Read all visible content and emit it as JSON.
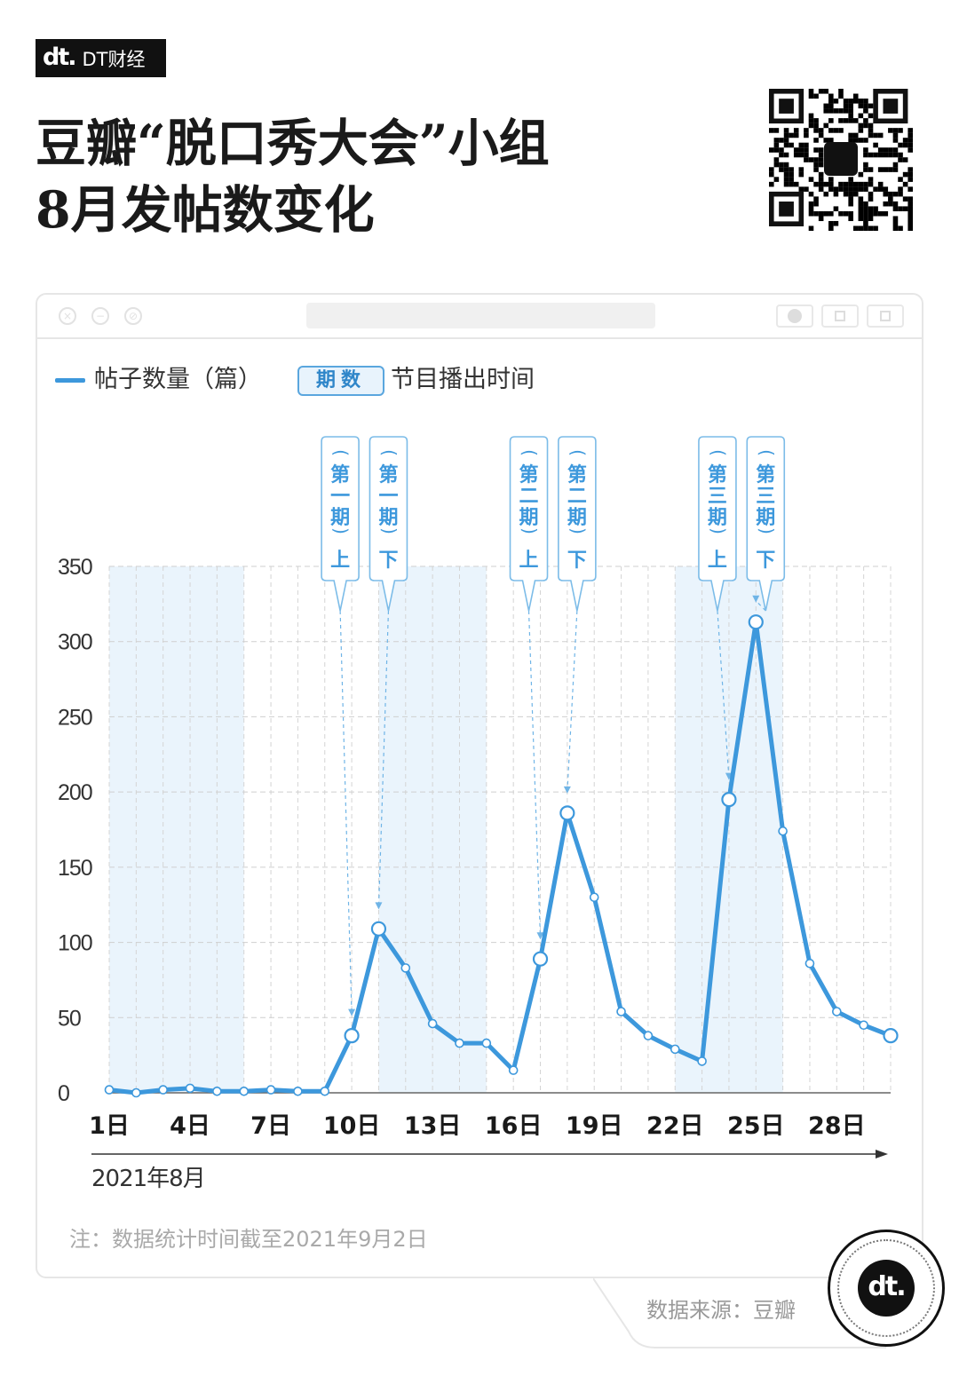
{
  "brand": {
    "mark": "dt.",
    "name": "DT财经"
  },
  "title_lines": [
    "豆瓣“脱口秀大会”小组",
    "8月发帖数变化"
  ],
  "legend": {
    "series_label": "帖子数量（篇）",
    "badge_text": "期数",
    "badge_desc": "节目播出时间"
  },
  "colors": {
    "line": "#3d98dc",
    "badge_border": "#5aa6de",
    "band": "#eaf4fc"
  },
  "chart_data": {
    "type": "line",
    "x": [
      1,
      2,
      3,
      4,
      5,
      6,
      7,
      8,
      9,
      10,
      11,
      12,
      13,
      14,
      15,
      16,
      17,
      18,
      19,
      20,
      21,
      22,
      23,
      24,
      25,
      26,
      27,
      28,
      29,
      30
    ],
    "series": [
      {
        "name": "帖子数量（篇）",
        "values": [
          2,
          0,
          2,
          3,
          1,
          1,
          2,
          1,
          1,
          38,
          109,
          83,
          46,
          33,
          33,
          15,
          89,
          186,
          130,
          54,
          38,
          29,
          21,
          195,
          313,
          174,
          86,
          54,
          45,
          38
        ]
      }
    ],
    "x_tick_labels": [
      "1日",
      "4日",
      "7日",
      "10日",
      "13日",
      "16日",
      "19日",
      "22日",
      "25日",
      "28日"
    ],
    "x_tick_values": [
      1,
      4,
      7,
      10,
      13,
      16,
      19,
      22,
      25,
      28
    ],
    "y_ticks": [
      0,
      50,
      100,
      150,
      200,
      250,
      300,
      350
    ],
    "ylim": [
      0,
      350
    ],
    "xlim": [
      1,
      30
    ],
    "x_caption": "2021年8月",
    "annotations": [
      {
        "day": 10,
        "label": [
          "(第",
          "一",
          "期",
          ")",
          "上"
        ]
      },
      {
        "day": 11,
        "label": [
          "(第",
          "一",
          "期",
          ")",
          "下"
        ]
      },
      {
        "day": 17,
        "label": [
          "(第",
          "二",
          "期",
          ")",
          "上"
        ]
      },
      {
        "day": 18,
        "label": [
          "(第",
          "二",
          "期",
          ")",
          "下"
        ]
      },
      {
        "day": 24,
        "label": [
          "(第",
          "三",
          "期",
          ")",
          "上"
        ]
      },
      {
        "day": 25,
        "label": [
          "(第",
          "三",
          "期",
          ")",
          "下"
        ]
      }
    ],
    "highlight_points": [
      10,
      11,
      17,
      18,
      24,
      25,
      30
    ],
    "shaded_ranges": [
      [
        1,
        6
      ],
      [
        11,
        15
      ],
      [
        22,
        26
      ]
    ]
  },
  "note": "注：数据统计时间截至2021年9月2日",
  "source": "数据来源：豆瓣",
  "badge_mark": "dt."
}
